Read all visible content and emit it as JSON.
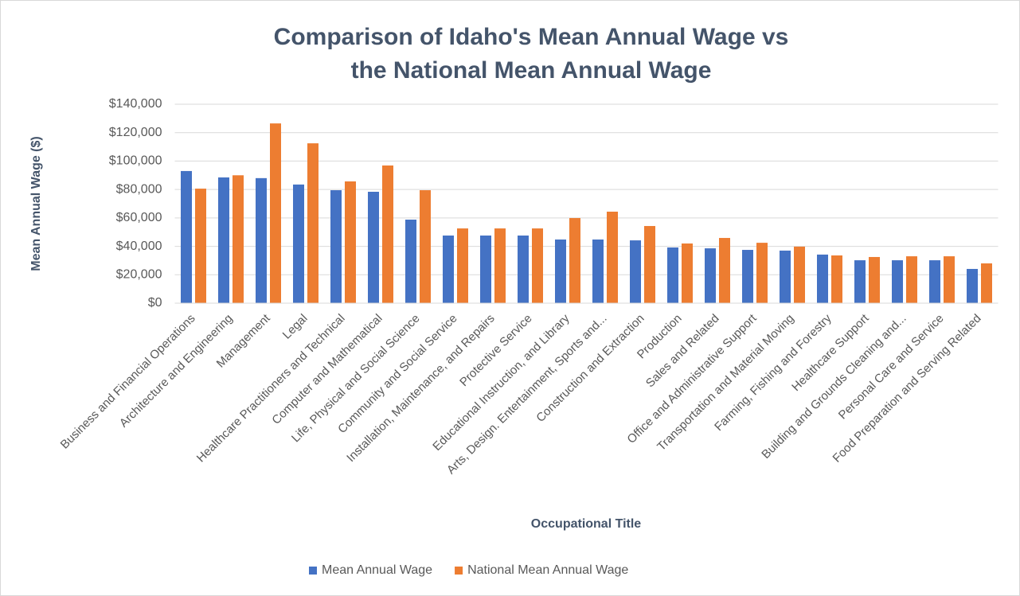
{
  "chart_data": {
    "type": "bar",
    "title": [
      "Comparison of Idaho's Mean Annual Wage vs",
      "the National Mean Annual Wage"
    ],
    "x_label": "Occupational Title",
    "y_label": "Mean Annual Wage ($)",
    "categories": [
      "Business and Financial Operations",
      "Architecture and Engineering",
      "Management",
      "Legal",
      "Healthcare Practitioners and Technical",
      "Computer and Mathematical",
      "Life, Physical and Social Science",
      "Community and Social Service",
      "Installation, Maintenance, and Repairs",
      "Protective Service",
      "Educational Instruction, and Library",
      "Arts, Design. Entertainment, Sports and...",
      "Construction and Extraction",
      "Production",
      "Sales and Related",
      "Office and Administrative Support",
      "Transportation and Material Moving",
      "Farming, Fishing and Forestry",
      "Healthcare Support",
      "Building and Grounds Cleaning and...",
      "Personal Care and Service",
      "Food Preparation and Serving Related"
    ],
    "series": [
      {
        "name": "Mean Annual Wage",
        "color": "#4472c4",
        "values": [
          93000,
          88500,
          88000,
          83500,
          79500,
          78400,
          58800,
          47600,
          47600,
          47600,
          44800,
          44800,
          44200,
          39200,
          38600,
          37500,
          37000,
          34200,
          30200,
          30200,
          30200,
          24100
        ]
      },
      {
        "name": "National Mean Annual Wage",
        "color": "#ed7d31",
        "values": [
          80600,
          90000,
          126500,
          112500,
          85700,
          96900,
          79500,
          52600,
          52600,
          52600,
          59900,
          64400,
          54300,
          42000,
          45900,
          42500,
          39800,
          33600,
          32500,
          33000,
          33000,
          28000
        ]
      }
    ],
    "ylim": [
      0,
      140000
    ],
    "yticks": [
      {
        "value": 0,
        "label": "$0"
      },
      {
        "value": 20000,
        "label": "$20,000"
      },
      {
        "value": 40000,
        "label": "$40,000"
      },
      {
        "value": 60000,
        "label": "$60,000"
      },
      {
        "value": 80000,
        "label": "$80,000"
      },
      {
        "value": 100000,
        "label": "$100,000"
      },
      {
        "value": 120000,
        "label": "$120,000"
      },
      {
        "value": 140000,
        "label": "$140,000"
      }
    ],
    "grid": true,
    "legend": "bottom"
  }
}
